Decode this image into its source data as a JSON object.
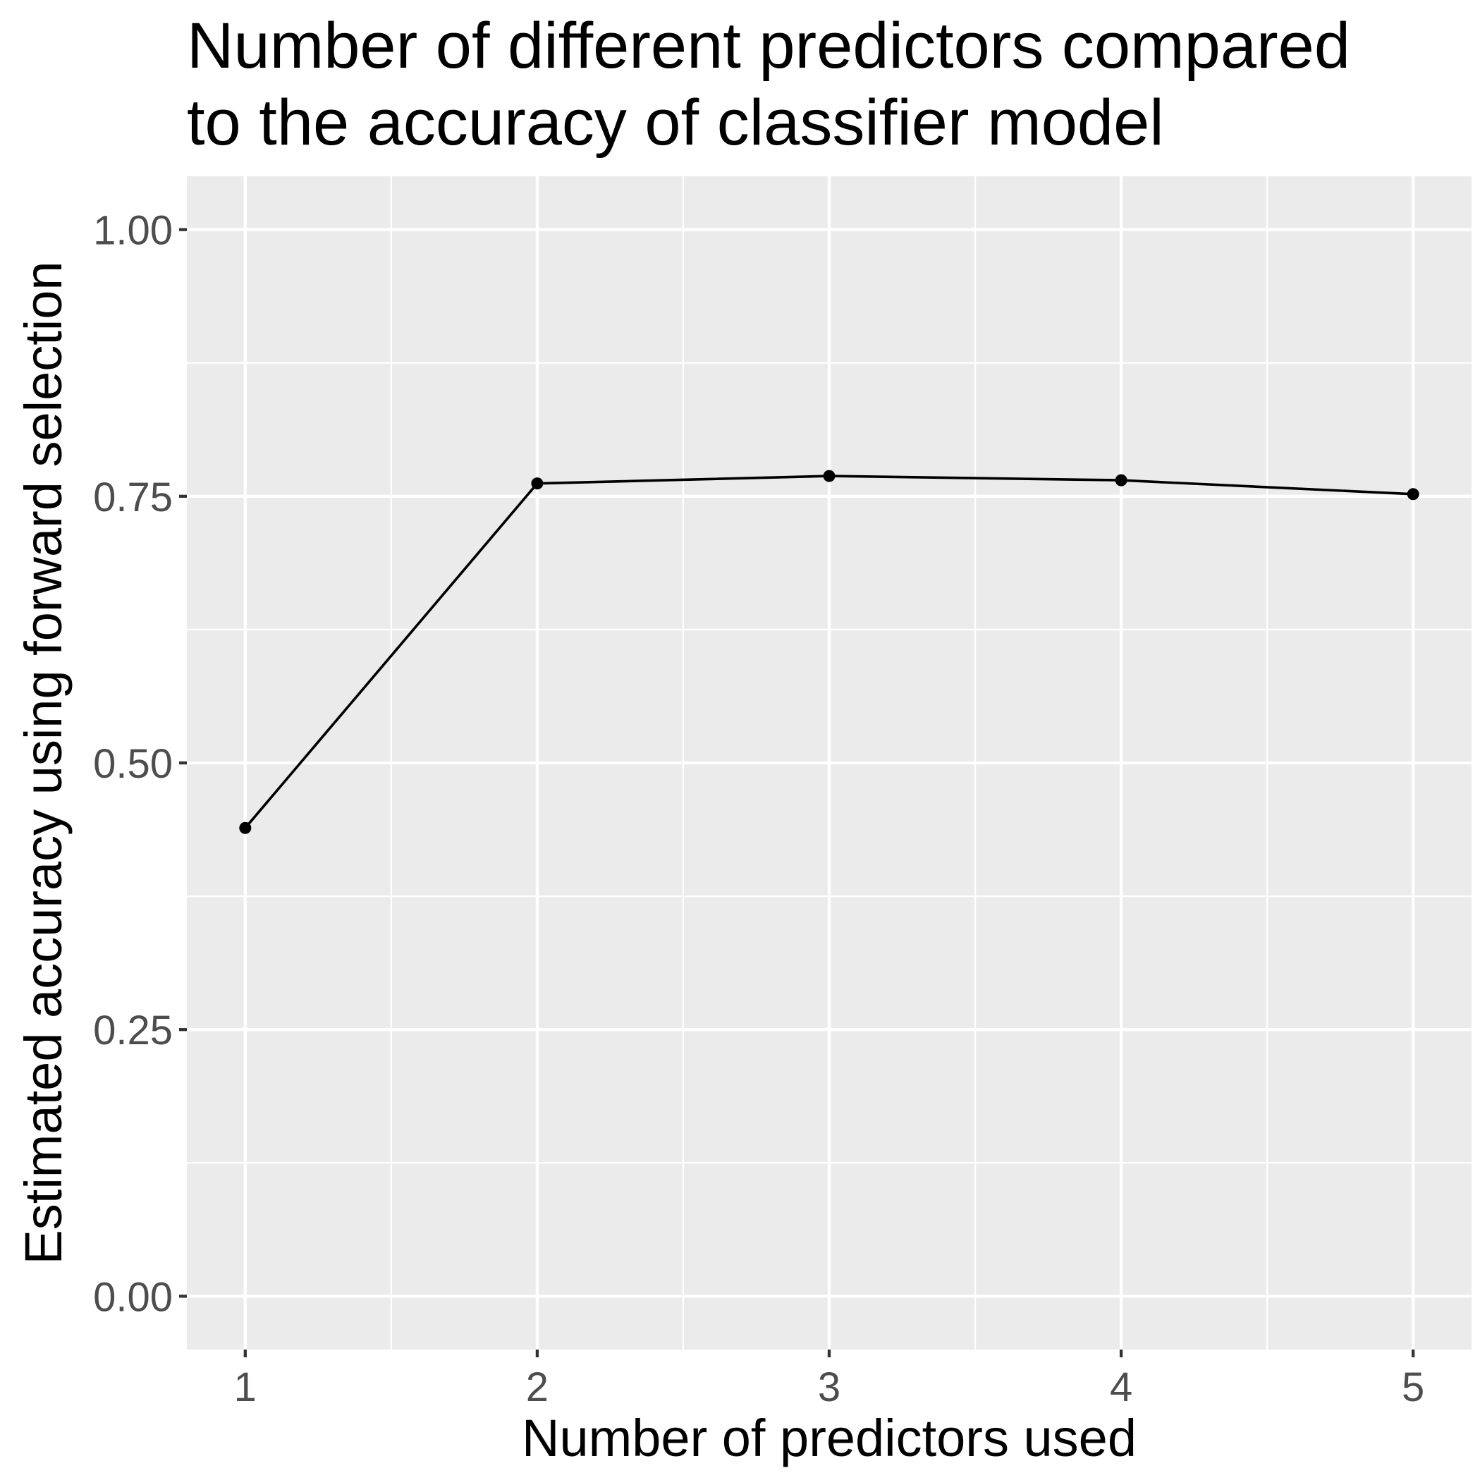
{
  "chart_data": {
    "type": "line",
    "title": "Number of different predictors compared to the accuracy of classifier model",
    "title_lines": [
      "Number of different predictors compared",
      "to the accuracy of classifier model"
    ],
    "xlabel": "Number of predictors used",
    "ylabel": "Estimated accuracy using forward selection",
    "x": [
      1,
      2,
      3,
      4,
      5
    ],
    "xticks": [
      "1",
      "2",
      "3",
      "4",
      "5"
    ],
    "yticks": [
      "0.00",
      "0.25",
      "0.50",
      "0.75",
      "1.00"
    ],
    "ytick_values": [
      0,
      0.25,
      0.5,
      0.75,
      1.0
    ],
    "series": [
      {
        "values": [
          0.439,
          0.762,
          0.769,
          0.765,
          0.752
        ]
      }
    ],
    "xlim": [
      0.8,
      5.2
    ],
    "ylim": [
      -0.05,
      1.05
    ],
    "grid": true,
    "legend": "none",
    "colors": {
      "panel_background": "#ebebeb",
      "grid": "#ffffff",
      "line": "#000000",
      "point": "#000000",
      "tick_text": "#4d4d4d"
    }
  }
}
